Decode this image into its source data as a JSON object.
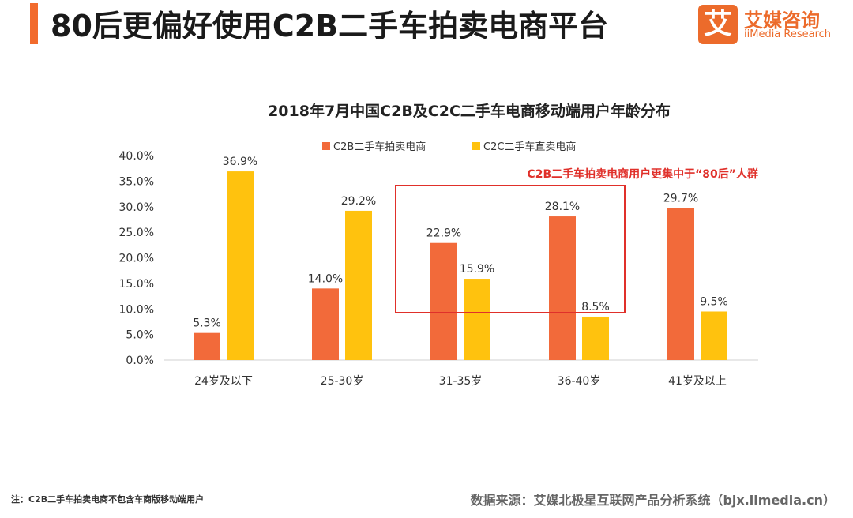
{
  "header": {
    "title": "80后更偏好使用C2B二手车拍卖电商平台",
    "logo_mark": "艾",
    "logo_name": "艾媒咨询",
    "logo_sub": "iiMedia Research"
  },
  "colors": {
    "c2b": "#f26a3a",
    "c2c": "#ffc20e",
    "accent": "#ec6b2b",
    "highlight": "#e0302a"
  },
  "chart_data": {
    "type": "bar",
    "title": "2018年7月中国C2B及C2C二手车电商移动端用户年龄分布",
    "categories": [
      "24岁及以下",
      "25-30岁",
      "31-35岁",
      "36-40岁",
      "41岁及以上"
    ],
    "series": [
      {
        "name": "C2B二手车拍卖电商",
        "values": [
          5.3,
          14.0,
          22.9,
          28.1,
          29.7
        ]
      },
      {
        "name": "C2C二手车直卖电商",
        "values": [
          36.9,
          29.2,
          15.9,
          8.5,
          9.5
        ]
      }
    ],
    "ylim": [
      0,
      40
    ],
    "yticks": [
      "0.0%",
      "5.0%",
      "10.0%",
      "15.0%",
      "20.0%",
      "25.0%",
      "30.0%",
      "35.0%",
      "40.0%"
    ],
    "data_labels": [
      [
        "5.3%",
        "14.0%",
        "22.9%",
        "28.1%",
        "29.7%"
      ],
      [
        "36.9%",
        "29.2%",
        "15.9%",
        "8.5%",
        "9.5%"
      ]
    ],
    "annotation": "C2B二手车拍卖电商用户更集中于“80后”人群",
    "legend_position": "top",
    "grid": false
  },
  "footer": {
    "note": "注：C2B二手车拍卖电商不包含车商版移动端用户",
    "source": "数据来源：艾媒北极星互联网产品分析系统（bjx.iimedia.cn）"
  }
}
